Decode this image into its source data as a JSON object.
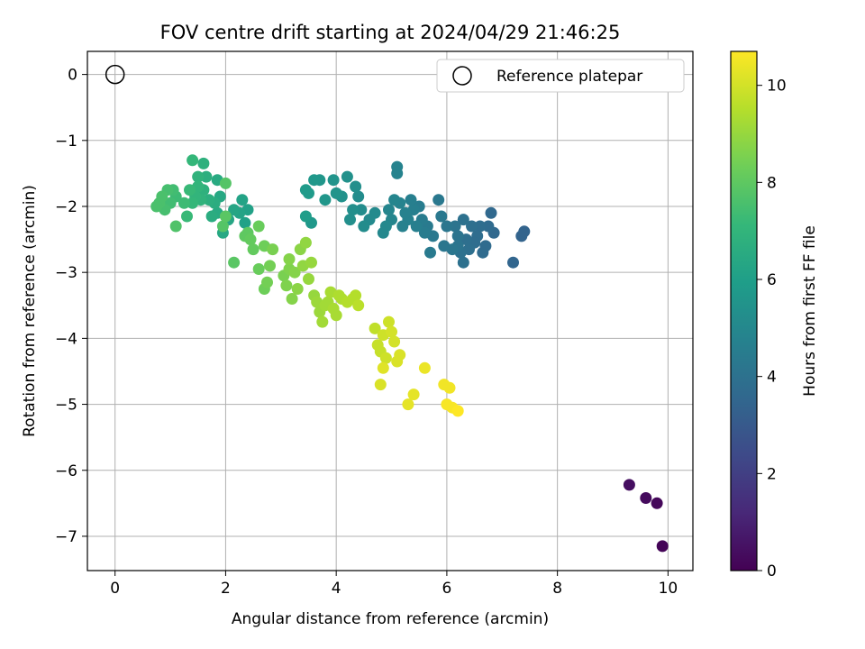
{
  "chart_data": {
    "type": "scatter",
    "title": "FOV centre drift starting at 2024/04/29 21:46:25",
    "xlabel": "Angular distance from reference (arcmin)",
    "ylabel": "Rotation from reference (arcmin)",
    "xlim": [
      -0.5,
      10.45
    ],
    "ylim": [
      -7.52,
      0.35
    ],
    "xticks": [
      0,
      2,
      4,
      6,
      8,
      10
    ],
    "yticks": [
      0,
      -1,
      -2,
      -3,
      -4,
      -5,
      -6,
      -7
    ],
    "grid": true,
    "legend": {
      "placement": "top-right",
      "entries": [
        "Reference platepar"
      ]
    },
    "reference_point": {
      "label": "Reference platepar",
      "x": 0,
      "y": 0
    },
    "colorbar": {
      "label": "Hours from first FF file",
      "colormap": "viridis",
      "range": [
        0,
        10.7
      ],
      "ticks": [
        0,
        2,
        4,
        6,
        8,
        10
      ]
    },
    "colormap_stops": [
      "#440154",
      "#482878",
      "#3e4a89",
      "#31688e",
      "#26828e",
      "#1f9e89",
      "#35b779",
      "#6ece58",
      "#b5de2b",
      "#fde725"
    ],
    "series": [
      {
        "values_encoding": "x, y, hours",
        "points": [
          [
            9.9,
            -7.15,
            0.1
          ],
          [
            9.8,
            -6.5,
            0.2
          ],
          [
            9.6,
            -6.42,
            0.3
          ],
          [
            9.3,
            -6.22,
            0.4
          ],
          [
            7.35,
            -2.45,
            3.4
          ],
          [
            7.4,
            -2.38,
            3.4
          ],
          [
            7.2,
            -2.85,
            3.5
          ],
          [
            6.8,
            -2.1,
            3.6
          ],
          [
            6.85,
            -2.4,
            3.6
          ],
          [
            6.75,
            -2.3,
            3.7
          ],
          [
            6.7,
            -2.6,
            3.7
          ],
          [
            6.65,
            -2.7,
            3.7
          ],
          [
            6.6,
            -2.3,
            3.8
          ],
          [
            6.55,
            -2.45,
            3.8
          ],
          [
            6.5,
            -2.55,
            3.8
          ],
          [
            6.45,
            -2.3,
            3.9
          ],
          [
            6.4,
            -2.65,
            3.9
          ],
          [
            6.35,
            -2.5,
            3.9
          ],
          [
            6.3,
            -2.2,
            4.0
          ],
          [
            6.3,
            -2.85,
            4.0
          ],
          [
            6.25,
            -2.7,
            4.0
          ],
          [
            6.2,
            -2.6,
            4.1
          ],
          [
            6.2,
            -2.45,
            4.1
          ],
          [
            6.15,
            -2.3,
            4.1
          ],
          [
            6.1,
            -2.65,
            4.2
          ],
          [
            6.0,
            -2.3,
            4.2
          ],
          [
            5.95,
            -2.6,
            4.2
          ],
          [
            5.9,
            -2.15,
            4.3
          ],
          [
            5.85,
            -1.9,
            4.3
          ],
          [
            5.75,
            -2.45,
            4.3
          ],
          [
            5.7,
            -2.7,
            4.4
          ],
          [
            5.65,
            -2.3,
            4.4
          ],
          [
            5.6,
            -2.4,
            4.5
          ],
          [
            5.55,
            -2.2,
            4.5
          ],
          [
            5.5,
            -2.0,
            4.5
          ],
          [
            5.45,
            -2.3,
            4.6
          ],
          [
            5.4,
            -2.05,
            4.6
          ],
          [
            5.35,
            -1.9,
            4.6
          ],
          [
            5.3,
            -2.2,
            4.7
          ],
          [
            5.25,
            -2.1,
            4.7
          ],
          [
            5.2,
            -2.3,
            4.7
          ],
          [
            5.15,
            -1.95,
            4.8
          ],
          [
            5.1,
            -1.5,
            4.8
          ],
          [
            5.1,
            -1.4,
            4.8
          ],
          [
            5.05,
            -1.9,
            4.9
          ],
          [
            5.0,
            -2.2,
            4.9
          ],
          [
            4.95,
            -2.05,
            4.9
          ],
          [
            4.9,
            -2.3,
            5.0
          ],
          [
            4.85,
            -2.4,
            5.0
          ],
          [
            4.7,
            -2.1,
            5.1
          ],
          [
            4.6,
            -2.2,
            5.1
          ],
          [
            4.5,
            -2.3,
            5.2
          ],
          [
            4.45,
            -2.05,
            5.2
          ],
          [
            4.4,
            -1.85,
            5.2
          ],
          [
            4.35,
            -1.7,
            5.3
          ],
          [
            4.3,
            -2.05,
            5.3
          ],
          [
            4.25,
            -2.2,
            5.3
          ],
          [
            4.2,
            -1.55,
            5.4
          ],
          [
            4.1,
            -1.85,
            5.4
          ],
          [
            4.0,
            -1.8,
            5.5
          ],
          [
            3.95,
            -1.6,
            5.5
          ],
          [
            3.8,
            -1.9,
            5.6
          ],
          [
            3.7,
            -1.6,
            5.6
          ],
          [
            3.6,
            -1.6,
            5.7
          ],
          [
            3.55,
            -2.25,
            5.7
          ],
          [
            3.5,
            -1.8,
            5.8
          ],
          [
            3.45,
            -1.75,
            5.8
          ],
          [
            3.45,
            -2.15,
            5.9
          ],
          [
            2.4,
            -2.05,
            6.1
          ],
          [
            2.35,
            -2.25,
            6.1
          ],
          [
            2.3,
            -1.9,
            6.2
          ],
          [
            2.25,
            -2.1,
            6.2
          ],
          [
            2.15,
            -2.05,
            6.3
          ],
          [
            2.05,
            -2.2,
            6.3
          ],
          [
            1.95,
            -2.4,
            6.4
          ],
          [
            1.9,
            -1.85,
            6.4
          ],
          [
            1.85,
            -1.6,
            6.5
          ],
          [
            1.85,
            -2.1,
            6.5
          ],
          [
            1.8,
            -1.95,
            6.6
          ],
          [
            1.75,
            -2.15,
            6.6
          ],
          [
            1.7,
            -1.9,
            6.7
          ],
          [
            1.65,
            -1.55,
            6.7
          ],
          [
            1.6,
            -1.75,
            6.8
          ],
          [
            1.6,
            -1.35,
            6.8
          ],
          [
            1.55,
            -1.9,
            6.9
          ],
          [
            1.5,
            -1.55,
            6.9
          ],
          [
            1.5,
            -1.7,
            7.0
          ],
          [
            1.45,
            -1.85,
            7.0
          ],
          [
            1.4,
            -1.95,
            7.1
          ],
          [
            1.4,
            -1.3,
            7.1
          ],
          [
            1.35,
            -1.75,
            7.2
          ],
          [
            1.3,
            -2.15,
            7.2
          ],
          [
            1.25,
            -1.95,
            7.3
          ],
          [
            1.1,
            -1.85,
            7.3
          ],
          [
            1.05,
            -1.75,
            7.4
          ],
          [
            1.0,
            -1.95,
            7.4
          ],
          [
            0.95,
            -1.75,
            7.5
          ],
          [
            0.9,
            -2.05,
            7.5
          ],
          [
            0.85,
            -1.85,
            7.6
          ],
          [
            0.8,
            -1.95,
            7.6
          ],
          [
            0.75,
            -2.0,
            7.6
          ],
          [
            1.1,
            -2.3,
            7.7
          ],
          [
            2.0,
            -1.65,
            7.8
          ],
          [
            1.95,
            -2.3,
            7.8
          ],
          [
            2.0,
            -2.15,
            7.9
          ],
          [
            2.15,
            -2.85,
            7.9
          ],
          [
            2.35,
            -2.45,
            8.0
          ],
          [
            2.4,
            -2.4,
            8.0
          ],
          [
            2.45,
            -2.5,
            8.1
          ],
          [
            2.5,
            -2.65,
            8.1
          ],
          [
            2.6,
            -2.3,
            8.2
          ],
          [
            2.6,
            -2.95,
            8.2
          ],
          [
            2.7,
            -2.6,
            8.3
          ],
          [
            2.7,
            -3.25,
            8.3
          ],
          [
            2.75,
            -3.15,
            8.4
          ],
          [
            2.8,
            -2.9,
            8.4
          ],
          [
            2.85,
            -2.65,
            8.5
          ],
          [
            3.05,
            -3.05,
            8.5
          ],
          [
            3.1,
            -3.2,
            8.6
          ],
          [
            3.15,
            -2.95,
            8.6
          ],
          [
            3.15,
            -2.8,
            8.7
          ],
          [
            3.2,
            -3.4,
            8.7
          ],
          [
            3.25,
            -3.0,
            8.7
          ],
          [
            3.3,
            -3.25,
            8.8
          ],
          [
            3.35,
            -2.65,
            8.8
          ],
          [
            3.4,
            -2.9,
            8.9
          ],
          [
            3.45,
            -2.55,
            8.9
          ],
          [
            3.5,
            -3.1,
            9.0
          ],
          [
            3.55,
            -2.85,
            9.0
          ],
          [
            3.6,
            -3.35,
            9.0
          ],
          [
            3.65,
            -3.45,
            9.1
          ],
          [
            3.7,
            -3.6,
            9.1
          ],
          [
            3.75,
            -3.75,
            9.2
          ],
          [
            3.8,
            -3.5,
            9.2
          ],
          [
            3.85,
            -3.45,
            9.2
          ],
          [
            3.9,
            -3.3,
            9.3
          ],
          [
            3.95,
            -3.55,
            9.3
          ],
          [
            4.0,
            -3.65,
            9.3
          ],
          [
            4.05,
            -3.35,
            9.4
          ],
          [
            4.1,
            -3.4,
            9.4
          ],
          [
            4.2,
            -3.45,
            9.5
          ],
          [
            4.3,
            -3.4,
            9.5
          ],
          [
            4.35,
            -3.35,
            9.5
          ],
          [
            4.4,
            -3.5,
            9.6
          ],
          [
            4.7,
            -3.85,
            9.7
          ],
          [
            4.75,
            -4.1,
            9.8
          ],
          [
            4.8,
            -4.2,
            9.8
          ],
          [
            4.85,
            -3.95,
            9.9
          ],
          [
            4.9,
            -4.3,
            9.9
          ],
          [
            4.95,
            -3.75,
            9.9
          ],
          [
            5.0,
            -3.9,
            10.0
          ],
          [
            5.05,
            -4.05,
            10.0
          ],
          [
            5.1,
            -4.35,
            10.1
          ],
          [
            5.15,
            -4.25,
            10.1
          ],
          [
            4.8,
            -4.7,
            10.1
          ],
          [
            4.85,
            -4.45,
            10.2
          ],
          [
            5.3,
            -5.0,
            10.3
          ],
          [
            5.4,
            -4.85,
            10.3
          ],
          [
            5.6,
            -4.45,
            10.4
          ],
          [
            5.95,
            -4.7,
            10.5
          ],
          [
            6.05,
            -4.75,
            10.5
          ],
          [
            6.0,
            -5.0,
            10.6
          ],
          [
            6.1,
            -5.05,
            10.6
          ],
          [
            6.2,
            -5.1,
            10.7
          ]
        ]
      }
    ]
  }
}
